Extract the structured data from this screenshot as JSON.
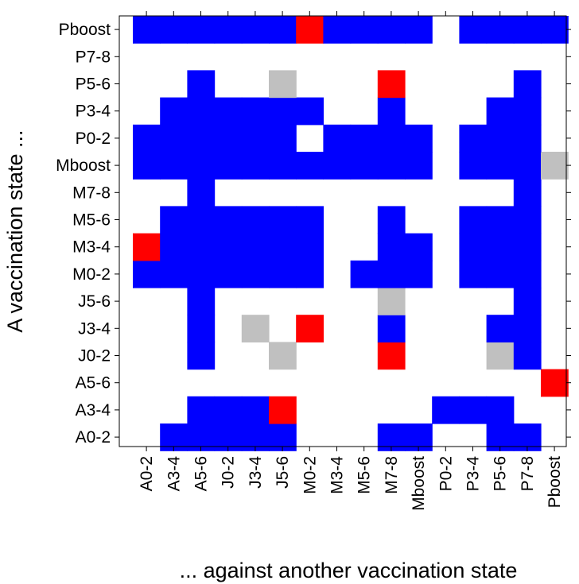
{
  "chart_data": {
    "type": "heatmap",
    "title": "",
    "xlabel": "... against another vaccination state",
    "ylabel": "A vaccination state ...",
    "x_categories": [
      "A0-2",
      "A3-4",
      "A5-6",
      "J0-2",
      "J3-4",
      "J5-6",
      "M0-2",
      "M3-4",
      "M5-6",
      "M7-8",
      "Mboost",
      "P0-2",
      "P3-4",
      "P5-6",
      "P7-8",
      "Pboost"
    ],
    "y_categories": [
      "A0-2",
      "A3-4",
      "A5-6",
      "J0-2",
      "J3-4",
      "J5-6",
      "M0-2",
      "M3-4",
      "M5-6",
      "M7-8",
      "Mboost",
      "P0-2",
      "P3-4",
      "P5-6",
      "P7-8",
      "Pboost"
    ],
    "legend": "none",
    "grid": false,
    "color_map": {
      "B": "#0000ff",
      "R": "#ff0000",
      "G": "#c0c0c0",
      ".": "#ffffff"
    },
    "cells": [
      ".BBBBB...BB..BB.",
      "..BBBR.....BBB..",
      "...............R",
      "..B..G...R...GB.",
      "..B.G.R..B...BB.",
      "..B......G....B.",
      "BBBBBBB.BBB.BBB.",
      "RBBBBBB..BB.BBB.",
      ".BBBBBB..B..BBB.",
      "..B...........B.",
      "BBBBBBBBBBB.BBBG",
      "BBBBBB.BBBB.BBB.",
      ".BBBBBB..B...BB.",
      "..B..G...R....B.",
      "................",
      "BBBBBBRBBBB.BBBB"
    ]
  }
}
